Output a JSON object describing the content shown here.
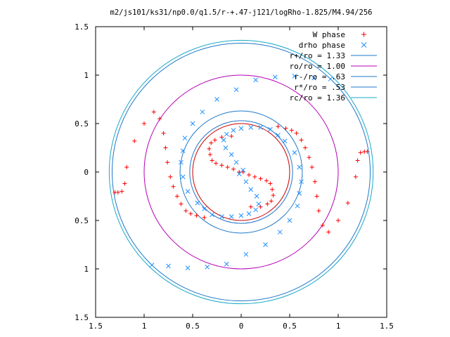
{
  "chart_data": {
    "type": "scatter",
    "title": "m2/js101/ks31/np0.0/q1.5/r-+.47-j121/logRho-1.825/M4.94/256",
    "xlim": [
      -1.5,
      1.5
    ],
    "ylim": [
      -1.5,
      1.5
    ],
    "x_ticks": [
      -1.5,
      -1,
      -0.5,
      0,
      0.5,
      1,
      1.5
    ],
    "x_tick_labels": [
      "1.5",
      "1",
      "0.5",
      "0",
      "0.5",
      "1",
      "1.5"
    ],
    "y_ticks": [
      1.5,
      1,
      0.5,
      0,
      -0.5,
      -1,
      -1.5
    ],
    "y_tick_labels": [
      "1.5",
      "1",
      "0.5",
      "0",
      "0.5",
      "1",
      "1.5"
    ],
    "grid": false,
    "legend_position": "top-right",
    "series": [
      {
        "name": "W phase",
        "marker": "plus",
        "color": "#ff0000",
        "points": [
          [
            0.02,
            0.0
          ],
          [
            0.08,
            -0.03
          ],
          [
            0.14,
            -0.05
          ],
          [
            0.2,
            -0.07
          ],
          [
            0.26,
            -0.09
          ],
          [
            0.3,
            -0.12
          ],
          [
            0.32,
            -0.18
          ],
          [
            0.33,
            -0.24
          ],
          [
            0.31,
            -0.3
          ],
          [
            0.27,
            -0.33
          ],
          [
            0.2,
            -0.36
          ],
          [
            0.1,
            -0.36
          ],
          [
            0.38,
            0.47
          ],
          [
            0.46,
            0.45
          ],
          [
            0.52,
            0.43
          ],
          [
            0.57,
            0.4
          ],
          [
            0.62,
            0.33
          ],
          [
            0.66,
            0.25
          ],
          [
            0.7,
            0.15
          ],
          [
            0.73,
            0.05
          ],
          [
            0.76,
            -0.1
          ],
          [
            0.78,
            -0.25
          ],
          [
            0.8,
            -0.4
          ],
          [
            0.84,
            -0.55
          ],
          [
            0.9,
            -0.62
          ],
          [
            1.0,
            -0.5
          ],
          [
            1.1,
            -0.32
          ],
          [
            1.18,
            -0.05
          ],
          [
            1.2,
            0.12
          ],
          [
            1.23,
            0.2
          ],
          [
            1.27,
            0.21
          ],
          [
            1.3,
            0.21
          ],
          [
            -0.02,
            0.0
          ],
          [
            -0.08,
            0.03
          ],
          [
            -0.14,
            0.05
          ],
          [
            -0.2,
            0.07
          ],
          [
            -0.26,
            0.09
          ],
          [
            -0.3,
            0.12
          ],
          [
            -0.32,
            0.18
          ],
          [
            -0.33,
            0.24
          ],
          [
            -0.31,
            0.3
          ],
          [
            -0.27,
            0.33
          ],
          [
            -0.2,
            0.36
          ],
          [
            -0.1,
            0.37
          ],
          [
            -0.38,
            -0.47
          ],
          [
            -0.46,
            -0.45
          ],
          [
            -0.52,
            -0.43
          ],
          [
            -0.57,
            -0.4
          ],
          [
            -0.62,
            -0.33
          ],
          [
            -0.66,
            -0.25
          ],
          [
            -0.7,
            -0.15
          ],
          [
            -0.73,
            -0.05
          ],
          [
            -0.76,
            0.1
          ],
          [
            -0.78,
            0.25
          ],
          [
            -0.8,
            0.4
          ],
          [
            -0.84,
            0.55
          ],
          [
            -0.9,
            0.62
          ],
          [
            -1.0,
            0.5
          ],
          [
            -1.1,
            0.32
          ],
          [
            -1.18,
            0.05
          ],
          [
            -1.2,
            -0.12
          ],
          [
            -1.23,
            -0.2
          ],
          [
            -1.27,
            -0.21
          ],
          [
            -1.3,
            -0.21
          ]
        ]
      },
      {
        "name": "drho phase",
        "marker": "cross",
        "color": "#1e90ff",
        "points": [
          [
            0.02,
            0.02
          ],
          [
            -0.05,
            0.1
          ],
          [
            -0.1,
            0.18
          ],
          [
            -0.16,
            0.25
          ],
          [
            -0.18,
            0.33
          ],
          [
            -0.15,
            0.39
          ],
          [
            -0.08,
            0.43
          ],
          [
            0.0,
            0.45
          ],
          [
            0.1,
            0.46
          ],
          [
            0.2,
            0.46
          ],
          [
            0.3,
            0.44
          ],
          [
            0.38,
            0.38
          ],
          [
            0.45,
            0.32
          ],
          [
            0.55,
            0.2
          ],
          [
            0.6,
            0.05
          ],
          [
            0.62,
            -0.1
          ],
          [
            0.6,
            -0.22
          ],
          [
            0.58,
            -0.35
          ],
          [
            0.5,
            -0.5
          ],
          [
            0.4,
            -0.62
          ],
          [
            0.25,
            -0.75
          ],
          [
            0.05,
            -0.85
          ],
          [
            -0.15,
            -0.95
          ],
          [
            -0.35,
            -0.98
          ],
          [
            -0.55,
            -0.99
          ],
          [
            -0.75,
            -0.97
          ],
          [
            -0.92,
            -0.96
          ],
          [
            -0.02,
            -0.02
          ],
          [
            0.05,
            -0.1
          ],
          [
            0.1,
            -0.18
          ],
          [
            0.16,
            -0.25
          ],
          [
            0.18,
            -0.33
          ],
          [
            0.15,
            -0.39
          ],
          [
            0.08,
            -0.43
          ],
          [
            0.0,
            -0.45
          ],
          [
            -0.1,
            -0.46
          ],
          [
            -0.2,
            -0.46
          ],
          [
            -0.3,
            -0.44
          ],
          [
            -0.38,
            -0.38
          ],
          [
            -0.45,
            -0.32
          ],
          [
            -0.55,
            -0.2
          ],
          [
            -0.6,
            -0.05
          ],
          [
            -0.62,
            0.1
          ],
          [
            -0.6,
            0.22
          ],
          [
            -0.58,
            0.35
          ],
          [
            -0.5,
            0.5
          ],
          [
            -0.4,
            0.62
          ],
          [
            -0.25,
            0.75
          ],
          [
            -0.05,
            0.85
          ],
          [
            0.15,
            0.95
          ],
          [
            0.35,
            0.98
          ],
          [
            0.55,
            0.99
          ],
          [
            0.75,
            0.97
          ],
          [
            0.92,
            0.96
          ]
        ]
      },
      {
        "name": "r+/ro = 1.33",
        "type": "circle",
        "radius": 1.33,
        "color": "#1e78c8"
      },
      {
        "name": "ro/ro = 1.00",
        "type": "circle",
        "radius": 1.0,
        "color": "#b400b4"
      },
      {
        "name": "r-/ro = .63",
        "type": "circle",
        "radius": 0.63,
        "color": "#1e78c8"
      },
      {
        "name": "r*/ro = .53",
        "type": "circle",
        "radius": 0.53,
        "color": "#2277cc"
      },
      {
        "name": "rc/ro = 1.36",
        "type": "circle",
        "radius": 1.36,
        "color": "#1aa8c8"
      }
    ],
    "extra_circles": [
      {
        "radius": 0.5,
        "color": "#c80000"
      }
    ]
  }
}
